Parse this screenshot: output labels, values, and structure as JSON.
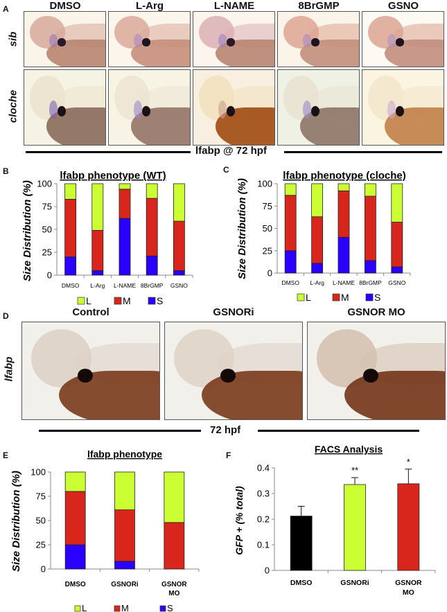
{
  "panel_a": {
    "letter": "A",
    "columns": [
      "DMSO",
      "L-Arg",
      "L-NAME",
      "8BrGMP",
      "GSNO"
    ],
    "rows": [
      "sib",
      "cloche"
    ],
    "caption": "lfabp @ 72 hpf",
    "photos": [
      {
        "row": "sib",
        "column": "DMSO",
        "bg": "#fbf4e8",
        "head": "#d6a99a",
        "yolk": "#b88570",
        "liver": "#2a1a2a",
        "stain": "#9a78b8"
      },
      {
        "row": "sib",
        "column": "L-Arg",
        "bg": "#fbf6ec",
        "head": "#dba99a",
        "yolk": "#c58f7a",
        "liver": "#1e1420",
        "stain": "#a889c0"
      },
      {
        "row": "sib",
        "column": "L-NAME",
        "bg": "#fbf5ee",
        "head": "#dab0b4",
        "yolk": "#b88570",
        "liver": "#2a1a2a",
        "stain": "#9c80c0"
      },
      {
        "row": "sib",
        "column": "8BrGMP",
        "bg": "#fbf4e8",
        "head": "#dea592",
        "yolk": "#c38f7c",
        "liver": "#1e1420",
        "stain": "#a889c0"
      },
      {
        "row": "sib",
        "column": "GSNO",
        "bg": "#fdfaf4",
        "head": "#dca392",
        "yolk": "#c28e80",
        "liver": "#1e1420",
        "stain": "#ad91c6"
      },
      {
        "row": "cloche",
        "column": "DMSO",
        "bg": "#f4f3e4",
        "head": "#ece2cc",
        "yolk": "#8a6a5a",
        "liver": "#1a1018",
        "stain": "#7f5fb8"
      },
      {
        "row": "cloche",
        "column": "L-Arg",
        "bg": "#f7f4e6",
        "head": "#ede3d2",
        "yolk": "#947467",
        "liver": "#1a1018",
        "stain": "#9a88c8"
      },
      {
        "row": "cloche",
        "column": "L-NAME",
        "bg": "#f9efe0",
        "head": "#f2e0bd",
        "yolk": "#a04a12",
        "liver": "#1a1018",
        "stain": "#c8a090"
      },
      {
        "row": "cloche",
        "column": "8BrGMP",
        "bg": "#eff1e4",
        "head": "#e8e2d0",
        "yolk": "#8d7465",
        "liver": "#1a1018",
        "stain": "#9a8ac6"
      },
      {
        "row": "cloche",
        "column": "GSNO",
        "bg": "#fbf4e0",
        "head": "#f2e6cb",
        "yolk": "#c08048",
        "liver": "#1a1018",
        "stain": "#c8a8d0"
      }
    ]
  },
  "panel_d": {
    "letter": "D",
    "columns": [
      "Control",
      "GSNORi",
      "GSNOR MO"
    ],
    "row_label": "lfabp",
    "caption": "72 hpf",
    "photos": [
      {
        "column": "Control",
        "bg": "#f1f0ea",
        "head": "#ddd0c6",
        "yolk": "#7a3a1c",
        "liver": "#150808"
      },
      {
        "column": "GSNORi",
        "bg": "#f1f0ea",
        "head": "#ded2c6",
        "yolk": "#7a3a1c",
        "liver": "#150808"
      },
      {
        "column": "GSNOR MO",
        "bg": "#f1f0ea",
        "head": "#d3bfae",
        "yolk": "#733418",
        "liver": "#150808"
      }
    ]
  },
  "colors": {
    "L": "#ccff33",
    "M": "#d9261c",
    "S": "#2a00ff",
    "black": "#000000"
  },
  "chart_data": [
    {
      "id": "B",
      "type": "bar",
      "stacked": true,
      "title": "lfabp phenotype (WT)",
      "ylabel": "Size Distribution (%)",
      "ylabel_parts": [
        "Size ",
        "Distribution",
        " (%)"
      ],
      "xlabel": "",
      "categories": [
        "DMSO",
        "L-Arg",
        "L-NAME",
        "8BrGMP",
        "GSNO"
      ],
      "series": [
        {
          "name": "S",
          "values": [
            20,
            5,
            62,
            21,
            5
          ]
        },
        {
          "name": "M",
          "values": [
            63,
            44,
            32,
            63,
            54
          ]
        },
        {
          "name": "L",
          "values": [
            17,
            51,
            6,
            16,
            41
          ]
        }
      ],
      "ylim": [
        0,
        100
      ],
      "yticks": [
        "0",
        "25",
        "50",
        "75",
        "100"
      ],
      "legend": [
        "L",
        "M",
        "S"
      ],
      "legend_position": "bottom",
      "grid": false
    },
    {
      "id": "C",
      "type": "bar",
      "stacked": true,
      "title": "lfabp phenotype (cloche)",
      "ylabel": "Size Distribution (%)",
      "ylabel_parts": [
        "Size ",
        "Distribution",
        " (%)"
      ],
      "xlabel": "",
      "categories": [
        "DMSO",
        "L-Arg",
        "L-NAME",
        "8BrGMP",
        "GSNO"
      ],
      "series": [
        {
          "name": "S",
          "values": [
            25,
            11,
            40,
            14,
            7
          ]
        },
        {
          "name": "M",
          "values": [
            62,
            52,
            52,
            72,
            50
          ]
        },
        {
          "name": "L",
          "values": [
            13,
            37,
            8,
            14,
            43
          ]
        }
      ],
      "ylim": [
        0,
        100
      ],
      "yticks": [
        "0",
        "25",
        "50",
        "75",
        "100"
      ],
      "legend": [
        "L",
        "M",
        "S"
      ],
      "legend_position": "bottom",
      "grid": false
    },
    {
      "id": "E",
      "type": "bar",
      "stacked": true,
      "title": "lfabp phenotype",
      "ylabel": "Size Distribution (%)",
      "ylabel_parts": [
        "Size ",
        "Distribution",
        " (%)"
      ],
      "xlabel": "",
      "categories": [
        "DMSO",
        "GSNORi",
        "GSNOR MO"
      ],
      "category_lines": [
        [
          "DMSO"
        ],
        [
          "GSNORi"
        ],
        [
          "GSNOR",
          "MO"
        ]
      ],
      "series": [
        {
          "name": "S",
          "values": [
            25,
            8,
            0
          ]
        },
        {
          "name": "M",
          "values": [
            55,
            53,
            48
          ]
        },
        {
          "name": "L",
          "values": [
            20,
            39,
            52
          ]
        }
      ],
      "ylim": [
        0,
        100
      ],
      "yticks": [
        "0",
        "25",
        "50",
        "75",
        "100"
      ],
      "legend": [
        "L",
        "M",
        "S"
      ],
      "legend_position": "bottom",
      "grid": false
    },
    {
      "id": "F",
      "type": "bar",
      "stacked": false,
      "title": "FACS Analysis",
      "ylabel": "GFP + (% total)",
      "xlabel": "",
      "categories": [
        "DMSO",
        "GSNORi",
        "GSNOR MO"
      ],
      "category_lines": [
        [
          "DMSO"
        ],
        [
          "GSNORi"
        ],
        [
          "GSNOR",
          "MO"
        ]
      ],
      "values": [
        0.212,
        0.335,
        0.338
      ],
      "errors": [
        0.038,
        0.027,
        0.057
      ],
      "significance": [
        "",
        "**",
        "*"
      ],
      "bar_colors": [
        "#000000",
        "#ccff33",
        "#d9261c"
      ],
      "ylim": [
        0,
        0.4
      ],
      "yticks": [
        "0",
        "0.1",
        "0.2",
        "0.3",
        "0.4"
      ],
      "grid": false
    }
  ]
}
